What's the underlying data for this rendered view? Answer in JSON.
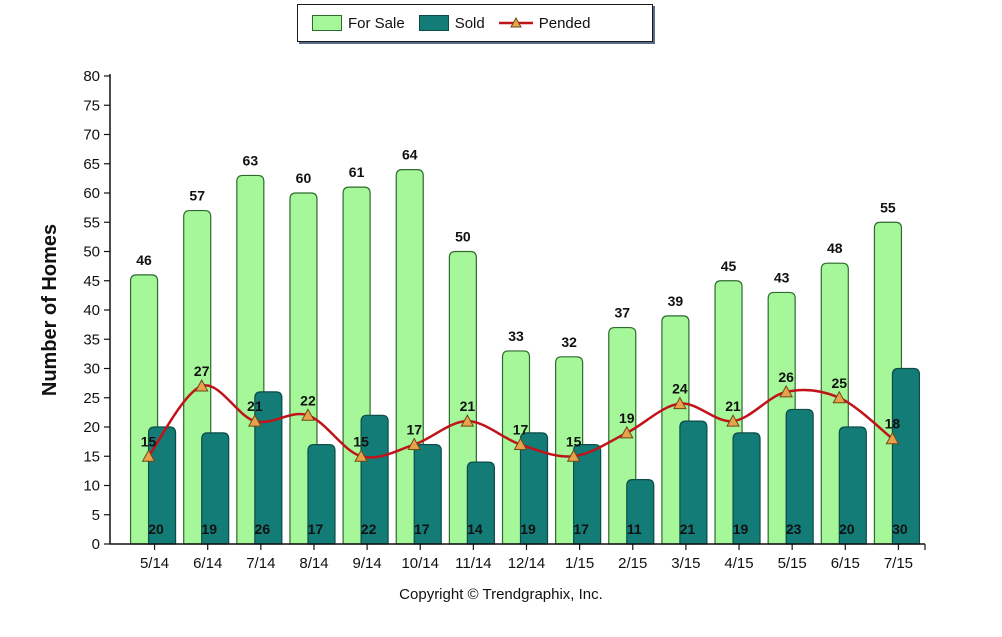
{
  "legend": {
    "for_sale": "For Sale",
    "sold": "Sold",
    "pended": "Pended"
  },
  "footer": {
    "copyright": "Copyright © Trendgraphix, Inc."
  },
  "colors": {
    "for_sale_fill": "#a6f79a",
    "for_sale_stroke": "#2d6a2d",
    "sold_fill": "#137c77",
    "sold_stroke": "#0b4b48",
    "pended_line": "#c0141a",
    "pended_marker": "#e8a24a"
  },
  "chart_data": {
    "type": "bar",
    "title": "",
    "xlabel": "",
    "ylabel": "Number of Homes",
    "ylim": [
      0,
      80
    ],
    "yticks": [
      0,
      5,
      10,
      15,
      20,
      25,
      30,
      35,
      40,
      45,
      50,
      55,
      60,
      65,
      70,
      75,
      80
    ],
    "grid": false,
    "legend_position": "top-center",
    "categories": [
      "5/14",
      "6/14",
      "7/14",
      "8/14",
      "9/14",
      "10/14",
      "11/14",
      "12/14",
      "1/15",
      "2/15",
      "3/15",
      "4/15",
      "5/15",
      "6/15",
      "7/15"
    ],
    "series": [
      {
        "name": "For Sale",
        "kind": "bar",
        "values": [
          46,
          57,
          63,
          60,
          61,
          64,
          50,
          33,
          32,
          37,
          39,
          45,
          43,
          48,
          55
        ]
      },
      {
        "name": "Sold",
        "kind": "bar",
        "values": [
          20,
          19,
          26,
          17,
          22,
          17,
          14,
          19,
          17,
          11,
          21,
          19,
          23,
          20,
          30
        ]
      },
      {
        "name": "Pended",
        "kind": "line",
        "values": [
          15,
          27,
          21,
          22,
          15,
          17,
          21,
          17,
          15,
          19,
          24,
          21,
          26,
          25,
          18
        ]
      }
    ]
  }
}
